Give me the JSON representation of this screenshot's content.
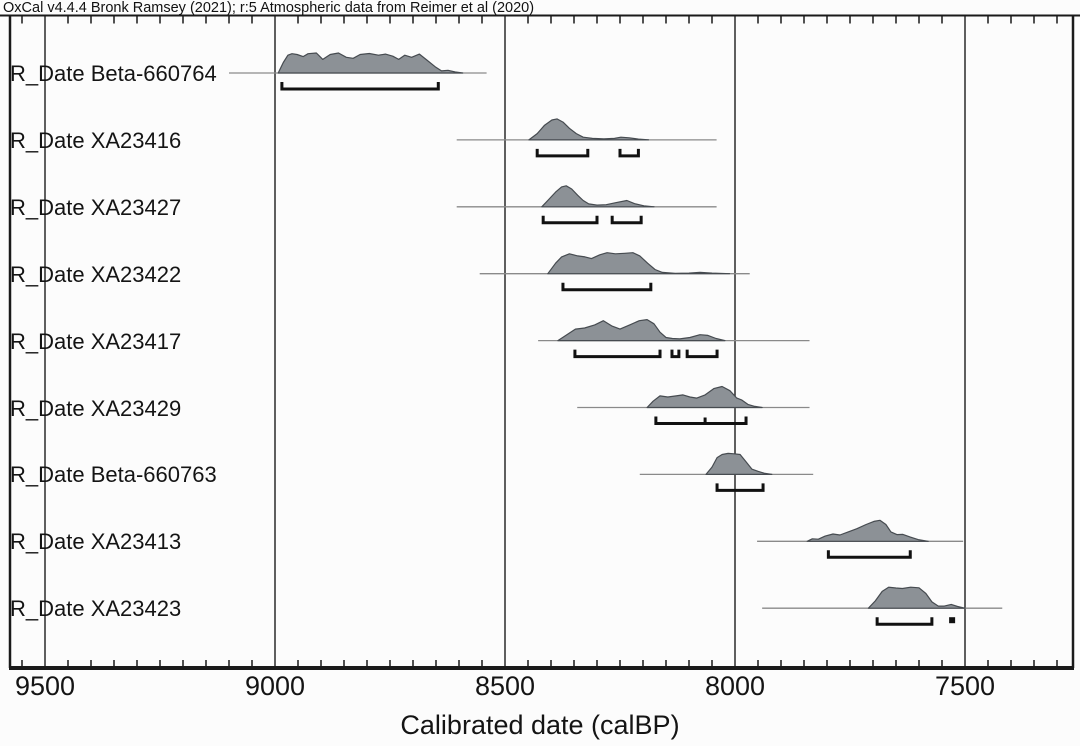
{
  "header": {
    "credit": "OxCal v4.4.4 Bronk Ramsey (2021); r:5 Atmospheric data from Reimer et al (2020)"
  },
  "colors": {
    "background": "#fcfcfc",
    "dist_fill": "#8C9196",
    "dist_stroke": "#464B50",
    "baseline": "#8a8a8a",
    "grid": "#2b2b2b",
    "frame": "#1a1a1a",
    "bracket": "#111111",
    "text": "#141414"
  },
  "chart_data": {
    "type": "area",
    "xlabel": "Calibrated date (calBP)",
    "x_direction": "decreasing",
    "x_major_ticks": [
      9500,
      9000,
      8500,
      8000,
      7500
    ],
    "x_minor_step": 50,
    "x_range": [
      9576,
      7265
    ],
    "grid": true,
    "legend": "none",
    "series": [
      {
        "label": "R_Date Beta-660764",
        "line_calBP": [
          9100,
          8540
        ],
        "distribution": [
          [
            8993,
            0
          ],
          [
            8982,
            0.5
          ],
          [
            8972,
            0.85
          ],
          [
            8963,
            0.92
          ],
          [
            8952,
            0.88
          ],
          [
            8939,
            0.78
          ],
          [
            8928,
            0.92
          ],
          [
            8910,
            0.95
          ],
          [
            8896,
            0.65
          ],
          [
            8880,
            0.88
          ],
          [
            8862,
            0.95
          ],
          [
            8845,
            0.75
          ],
          [
            8830,
            0.7
          ],
          [
            8815,
            0.88
          ],
          [
            8795,
            0.93
          ],
          [
            8775,
            0.85
          ],
          [
            8760,
            0.9
          ],
          [
            8744,
            0.8
          ],
          [
            8731,
            0.65
          ],
          [
            8718,
            0.85
          ],
          [
            8703,
            0.75
          ],
          [
            8686,
            0.9
          ],
          [
            8670,
            0.62
          ],
          [
            8652,
            0.3
          ],
          [
            8638,
            0.1
          ],
          [
            8624,
            0.13
          ],
          [
            8608,
            0.05
          ],
          [
            8592,
            0
          ]
        ],
        "ranges_calBP": [
          [
            8985,
            8645
          ]
        ],
        "range_mid_ticks_calBP": [],
        "range_dots_calBP": []
      },
      {
        "label": "R_Date XA23416",
        "line_calBP": [
          8605,
          8040
        ],
        "distribution": [
          [
            8448,
            0
          ],
          [
            8430,
            0.3
          ],
          [
            8414,
            0.7
          ],
          [
            8398,
            0.95
          ],
          [
            8387,
            1.0
          ],
          [
            8374,
            0.85
          ],
          [
            8360,
            0.55
          ],
          [
            8345,
            0.3
          ],
          [
            8330,
            0.13
          ],
          [
            8310,
            0.07
          ],
          [
            8285,
            0.05
          ],
          [
            8262,
            0.07
          ],
          [
            8248,
            0.13
          ],
          [
            8230,
            0.1
          ],
          [
            8210,
            0.04
          ],
          [
            8188,
            0
          ]
        ],
        "ranges_calBP": [
          [
            8430,
            8320
          ],
          [
            8250,
            8210
          ]
        ],
        "range_mid_ticks_calBP": [],
        "range_dots_calBP": []
      },
      {
        "label": "R_Date XA23427",
        "line_calBP": [
          8605,
          8040
        ],
        "distribution": [
          [
            8420,
            0
          ],
          [
            8405,
            0.35
          ],
          [
            8390,
            0.7
          ],
          [
            8377,
            0.95
          ],
          [
            8367,
            1.0
          ],
          [
            8355,
            0.85
          ],
          [
            8342,
            0.55
          ],
          [
            8330,
            0.3
          ],
          [
            8318,
            0.14
          ],
          [
            8300,
            0.08
          ],
          [
            8280,
            0.1
          ],
          [
            8258,
            0.2
          ],
          [
            8235,
            0.3
          ],
          [
            8218,
            0.15
          ],
          [
            8198,
            0.05
          ],
          [
            8176,
            0
          ]
        ],
        "ranges_calBP": [
          [
            8417,
            8300
          ],
          [
            8267,
            8204
          ]
        ],
        "range_mid_ticks_calBP": [],
        "range_dots_calBP": []
      },
      {
        "label": "R_Date XA23422",
        "line_calBP": [
          8555,
          7968
        ],
        "distribution": [
          [
            8407,
            0
          ],
          [
            8390,
            0.5
          ],
          [
            8377,
            0.8
          ],
          [
            8360,
            0.95
          ],
          [
            8342,
            0.85
          ],
          [
            8326,
            0.8
          ],
          [
            8312,
            0.72
          ],
          [
            8294,
            0.9
          ],
          [
            8278,
            1.0
          ],
          [
            8260,
            0.95
          ],
          [
            8240,
            0.97
          ],
          [
            8222,
            1.0
          ],
          [
            8207,
            0.85
          ],
          [
            8190,
            0.5
          ],
          [
            8174,
            0.2
          ],
          [
            8158,
            0.06
          ],
          [
            8130,
            0.02
          ],
          [
            8100,
            0.03
          ],
          [
            8076,
            0.06
          ],
          [
            8050,
            0.03
          ],
          [
            8012,
            0
          ]
        ],
        "ranges_calBP": [
          [
            8374,
            8183
          ]
        ],
        "range_mid_ticks_calBP": [],
        "range_dots_calBP": []
      },
      {
        "label": "R_Date XA23417",
        "line_calBP": [
          8428,
          7838
        ],
        "distribution": [
          [
            8385,
            0
          ],
          [
            8364,
            0.3
          ],
          [
            8347,
            0.55
          ],
          [
            8327,
            0.6
          ],
          [
            8305,
            0.75
          ],
          [
            8286,
            0.95
          ],
          [
            8268,
            0.7
          ],
          [
            8250,
            0.55
          ],
          [
            8229,
            0.75
          ],
          [
            8208,
            0.95
          ],
          [
            8191,
            1.0
          ],
          [
            8176,
            0.8
          ],
          [
            8163,
            0.4
          ],
          [
            8150,
            0.15
          ],
          [
            8136,
            0.1
          ],
          [
            8120,
            0.08
          ],
          [
            8098,
            0.15
          ],
          [
            8076,
            0.28
          ],
          [
            8059,
            0.25
          ],
          [
            8041,
            0.1
          ],
          [
            8022,
            0
          ]
        ],
        "ranges_calBP": [
          [
            8348,
            8163
          ],
          [
            8137,
            8122
          ],
          [
            8104,
            8039
          ]
        ],
        "range_mid_ticks_calBP": [],
        "range_dots_calBP": []
      },
      {
        "label": "R_Date XA23429",
        "line_calBP": [
          8343,
          7838
        ],
        "distribution": [
          [
            8191,
            0
          ],
          [
            8178,
            0.3
          ],
          [
            8163,
            0.55
          ],
          [
            8146,
            0.5
          ],
          [
            8128,
            0.55
          ],
          [
            8113,
            0.6
          ],
          [
            8098,
            0.5
          ],
          [
            8083,
            0.45
          ],
          [
            8065,
            0.6
          ],
          [
            8046,
            0.9
          ],
          [
            8028,
            1.0
          ],
          [
            8011,
            0.8
          ],
          [
            7996,
            0.45
          ],
          [
            7985,
            0.35
          ],
          [
            7972,
            0.15
          ],
          [
            7957,
            0.05
          ],
          [
            7941,
            0
          ]
        ],
        "ranges_calBP": [
          [
            8172,
            7976
          ]
        ],
        "range_mid_ticks_calBP": [
          8065
        ],
        "range_dots_calBP": []
      },
      {
        "label": "R_Date Beta-660763",
        "line_calBP": [
          8207,
          7830
        ],
        "distribution": [
          [
            8063,
            0
          ],
          [
            8050,
            0.35
          ],
          [
            8039,
            0.8
          ],
          [
            8028,
            0.95
          ],
          [
            8015,
            1.0
          ],
          [
            8002,
            0.98
          ],
          [
            7989,
            0.95
          ],
          [
            7976,
            0.6
          ],
          [
            7963,
            0.25
          ],
          [
            7950,
            0.15
          ],
          [
            7935,
            0.05
          ],
          [
            7920,
            0
          ]
        ],
        "ranges_calBP": [
          [
            8039,
            7939
          ]
        ],
        "range_mid_ticks_calBP": [],
        "range_dots_calBP": []
      },
      {
        "label": "R_Date XA23413",
        "line_calBP": [
          7952,
          7504
        ],
        "distribution": [
          [
            7843,
            0
          ],
          [
            7832,
            0.12
          ],
          [
            7819,
            0.1
          ],
          [
            7804,
            0.25
          ],
          [
            7787,
            0.35
          ],
          [
            7772,
            0.3
          ],
          [
            7754,
            0.45
          ],
          [
            7735,
            0.6
          ],
          [
            7715,
            0.8
          ],
          [
            7698,
            0.95
          ],
          [
            7685,
            1.0
          ],
          [
            7672,
            0.8
          ],
          [
            7661,
            0.45
          ],
          [
            7648,
            0.32
          ],
          [
            7635,
            0.33
          ],
          [
            7619,
            0.2
          ],
          [
            7602,
            0.08
          ],
          [
            7580,
            0
          ]
        ],
        "ranges_calBP": [
          [
            7797,
            7619
          ]
        ],
        "range_mid_ticks_calBP": [],
        "range_dots_calBP": []
      },
      {
        "label": "R_Date XA23423",
        "line_calBP": [
          7941,
          7419
        ],
        "distribution": [
          [
            7710,
            0
          ],
          [
            7695,
            0.35
          ],
          [
            7680,
            0.8
          ],
          [
            7666,
            1.0
          ],
          [
            7650,
            0.96
          ],
          [
            7636,
            0.94
          ],
          [
            7618,
            1.0
          ],
          [
            7600,
            0.97
          ],
          [
            7585,
            0.7
          ],
          [
            7572,
            0.3
          ],
          [
            7558,
            0.1
          ],
          [
            7545,
            0.1
          ],
          [
            7530,
            0.18
          ],
          [
            7516,
            0.08
          ],
          [
            7500,
            0
          ]
        ],
        "ranges_calBP": [
          [
            7691,
            7572
          ]
        ],
        "range_mid_ticks_calBP": [],
        "range_dots_calBP": [
          7528
        ]
      }
    ]
  }
}
